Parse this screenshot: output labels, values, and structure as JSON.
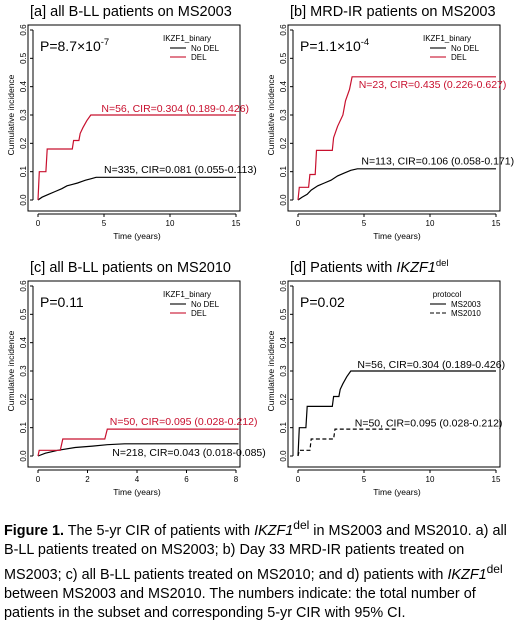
{
  "chart_data": [
    {
      "type": "line",
      "title": "[a] all B-LL patients on MS2003",
      "p_value": "P=8.7×10",
      "p_exp": "-7",
      "xlabel": "Time (years)",
      "ylabel": "Cumulative incidence",
      "xlim": [
        0,
        15
      ],
      "ylim": [
        0,
        0.6
      ],
      "xticks": [
        "0",
        "5",
        "10",
        "15"
      ],
      "yticks": [
        "0.0",
        "0.1",
        "0.2",
        "0.3",
        "0.4",
        "0.5",
        "0.6"
      ],
      "legend_title": "IKZF1_binary",
      "legend_position": "top-right",
      "series": [
        {
          "name": "No DEL",
          "color": "#000000",
          "dash": false,
          "points": [
            [
              0,
              0
            ],
            [
              0.3,
              0.01
            ],
            [
              0.8,
              0.02
            ],
            [
              1.3,
              0.03
            ],
            [
              1.8,
              0.04
            ],
            [
              2.2,
              0.05
            ],
            [
              2.6,
              0.055
            ],
            [
              3.0,
              0.06
            ],
            [
              3.3,
              0.065
            ],
            [
              3.6,
              0.07
            ],
            [
              4.0,
              0.075
            ],
            [
              4.4,
              0.08
            ],
            [
              15,
              0.08
            ]
          ],
          "annotation": "N=335, CIR=0.081 (0.055-0.113)",
          "ann_x": 5.0,
          "ann_y": 0.095
        },
        {
          "name": "DEL",
          "color": "#c8102e",
          "dash": false,
          "points": [
            [
              0,
              0
            ],
            [
              0.1,
              0.1
            ],
            [
              0.6,
              0.1
            ],
            [
              0.7,
              0.18
            ],
            [
              2.6,
              0.18
            ],
            [
              2.7,
              0.21
            ],
            [
              3.1,
              0.21
            ],
            [
              3.2,
              0.235
            ],
            [
              3.4,
              0.255
            ],
            [
              3.7,
              0.28
            ],
            [
              4.0,
              0.3
            ],
            [
              15,
              0.3
            ]
          ],
          "annotation": "N=56, CIR=0.304 (0.189-0.426)",
          "ann_x": 4.8,
          "ann_y": 0.31
        }
      ]
    },
    {
      "type": "line",
      "title": "[b] MRD-IR patients on MS2003",
      "p_value": "P=1.1×10",
      "p_exp": "-4",
      "xlabel": "Time (years)",
      "ylabel": "Cumulative incidence",
      "xlim": [
        0,
        15
      ],
      "ylim": [
        0,
        0.6
      ],
      "xticks": [
        "0",
        "5",
        "10",
        "15"
      ],
      "yticks": [
        "0.0",
        "0.1",
        "0.2",
        "0.3",
        "0.4",
        "0.5",
        "0.6"
      ],
      "legend_title": "IKZF1_binary",
      "legend_position": "top-right",
      "series": [
        {
          "name": "No DEL",
          "color": "#000000",
          "dash": false,
          "points": [
            [
              0,
              0
            ],
            [
              0.3,
              0.01
            ],
            [
              0.7,
              0.02
            ],
            [
              1.0,
              0.035
            ],
            [
              1.5,
              0.05
            ],
            [
              2.0,
              0.06
            ],
            [
              2.5,
              0.07
            ],
            [
              3.0,
              0.085
            ],
            [
              3.5,
              0.095
            ],
            [
              4.0,
              0.105
            ],
            [
              4.5,
              0.11
            ],
            [
              15,
              0.11
            ]
          ],
          "annotation": "N=113, CIR=0.106 (0.058-0.171)",
          "ann_x": 4.8,
          "ann_y": 0.125
        },
        {
          "name": "DEL",
          "color": "#c8102e",
          "dash": false,
          "points": [
            [
              0,
              0
            ],
            [
              0.1,
              0.045
            ],
            [
              0.8,
              0.045
            ],
            [
              0.9,
              0.09
            ],
            [
              1.3,
              0.09
            ],
            [
              1.4,
              0.175
            ],
            [
              2.6,
              0.175
            ],
            [
              2.7,
              0.22
            ],
            [
              3.0,
              0.26
            ],
            [
              3.4,
              0.3
            ],
            [
              3.6,
              0.35
            ],
            [
              3.9,
              0.39
            ],
            [
              4.1,
              0.435
            ],
            [
              15,
              0.435
            ]
          ],
          "annotation": "N=23, CIR=0.435 (0.226-0.627)",
          "ann_x": 4.6,
          "ann_y": 0.395
        }
      ]
    },
    {
      "type": "line",
      "title": "[c] all B-LL patients on MS2010",
      "p_value": "P=0.11",
      "p_exp": "",
      "xlabel": "Time (years)",
      "ylabel": "Cumulative incidence",
      "xlim": [
        0,
        8
      ],
      "ylim": [
        0,
        0.6
      ],
      "xticks": [
        "0",
        "2",
        "4",
        "6",
        "8"
      ],
      "yticks": [
        "0.0",
        "0.1",
        "0.2",
        "0.3",
        "0.4",
        "0.5",
        "0.6"
      ],
      "legend_title": "IKZF1_binary",
      "legend_position": "top-right",
      "series": [
        {
          "name": "No DEL",
          "color": "#000000",
          "dash": false,
          "points": [
            [
              0,
              0
            ],
            [
              0.3,
              0.01
            ],
            [
              0.8,
              0.02
            ],
            [
              1.5,
              0.03
            ],
            [
              2.2,
              0.035
            ],
            [
              2.8,
              0.04
            ],
            [
              3.5,
              0.043
            ],
            [
              8.1,
              0.043
            ]
          ],
          "annotation": "N=218, CIR=0.043 (0.018-0.085)",
          "ann_x": 3.0,
          "ann_y": 0.0
        },
        {
          "name": "DEL",
          "color": "#c8102e",
          "dash": false,
          "points": [
            [
              0,
              0
            ],
            [
              0.05,
              0.02
            ],
            [
              0.9,
              0.02
            ],
            [
              1.0,
              0.06
            ],
            [
              2.7,
              0.06
            ],
            [
              2.8,
              0.095
            ],
            [
              8.1,
              0.095
            ]
          ],
          "annotation": "N=50, CIR=0.095 (0.028-0.212)",
          "ann_x": 2.9,
          "ann_y": 0.11
        }
      ]
    },
    {
      "type": "line",
      "title": "[d] Patients with IKZF1",
      "title_main": "[d] Patients with ",
      "title_italic": "IKZF1",
      "title_sup": "del",
      "p_value": "P=0.02",
      "p_exp": "",
      "xlabel": "Time (years)",
      "ylabel": "Cumulative incidence",
      "xlim": [
        0,
        15
      ],
      "ylim": [
        0,
        0.6
      ],
      "xticks": [
        "0",
        "5",
        "10",
        "15"
      ],
      "yticks": [
        "0.0",
        "0.1",
        "0.2",
        "0.3",
        "0.4",
        "0.5",
        "0.6"
      ],
      "legend_title": "protocol",
      "legend_position": "top-right",
      "series": [
        {
          "name": "MS2003",
          "color": "#000000",
          "dash": false,
          "points": [
            [
              0,
              0
            ],
            [
              0.1,
              0.1
            ],
            [
              0.6,
              0.1
            ],
            [
              0.7,
              0.175
            ],
            [
              2.6,
              0.175
            ],
            [
              2.7,
              0.21
            ],
            [
              3.1,
              0.21
            ],
            [
              3.2,
              0.235
            ],
            [
              3.4,
              0.255
            ],
            [
              3.7,
              0.28
            ],
            [
              4.0,
              0.3
            ],
            [
              15,
              0.3
            ]
          ],
          "annotation": "N=56, CIR=0.304 (0.189-0.426)",
          "ann_x": 4.5,
          "ann_y": 0.31
        },
        {
          "name": "MS2010",
          "color": "#000000",
          "dash": true,
          "points": [
            [
              0,
              0
            ],
            [
              0.1,
              0.02
            ],
            [
              0.9,
              0.02
            ],
            [
              1.0,
              0.06
            ],
            [
              2.7,
              0.06
            ],
            [
              2.8,
              0.095
            ],
            [
              7.5,
              0.095
            ]
          ],
          "annotation": "N=50, CIR=0.095 (0.028-0.212)",
          "ann_x": 4.3,
          "ann_y": 0.105
        }
      ]
    }
  ],
  "caption": {
    "label": "Figure 1.",
    "t1": " The 5-yr CIR of patients with ",
    "i1": "IKZF1",
    "s1": "del",
    "t2": " in MS2003 and MS2010. a) all B-LL patients treated on MS2003; b) Day 33 MRD-IR patients treated on MS2003; c) all B-LL patients treated on MS2010; and d) patients with ",
    "i2": "IKZF1",
    "s2": "del",
    "t3": " between MS2003 and MS2010. The numbers indicate: the total number of patients in the subset and corresponding 5-yr CIR with 95% CI."
  }
}
